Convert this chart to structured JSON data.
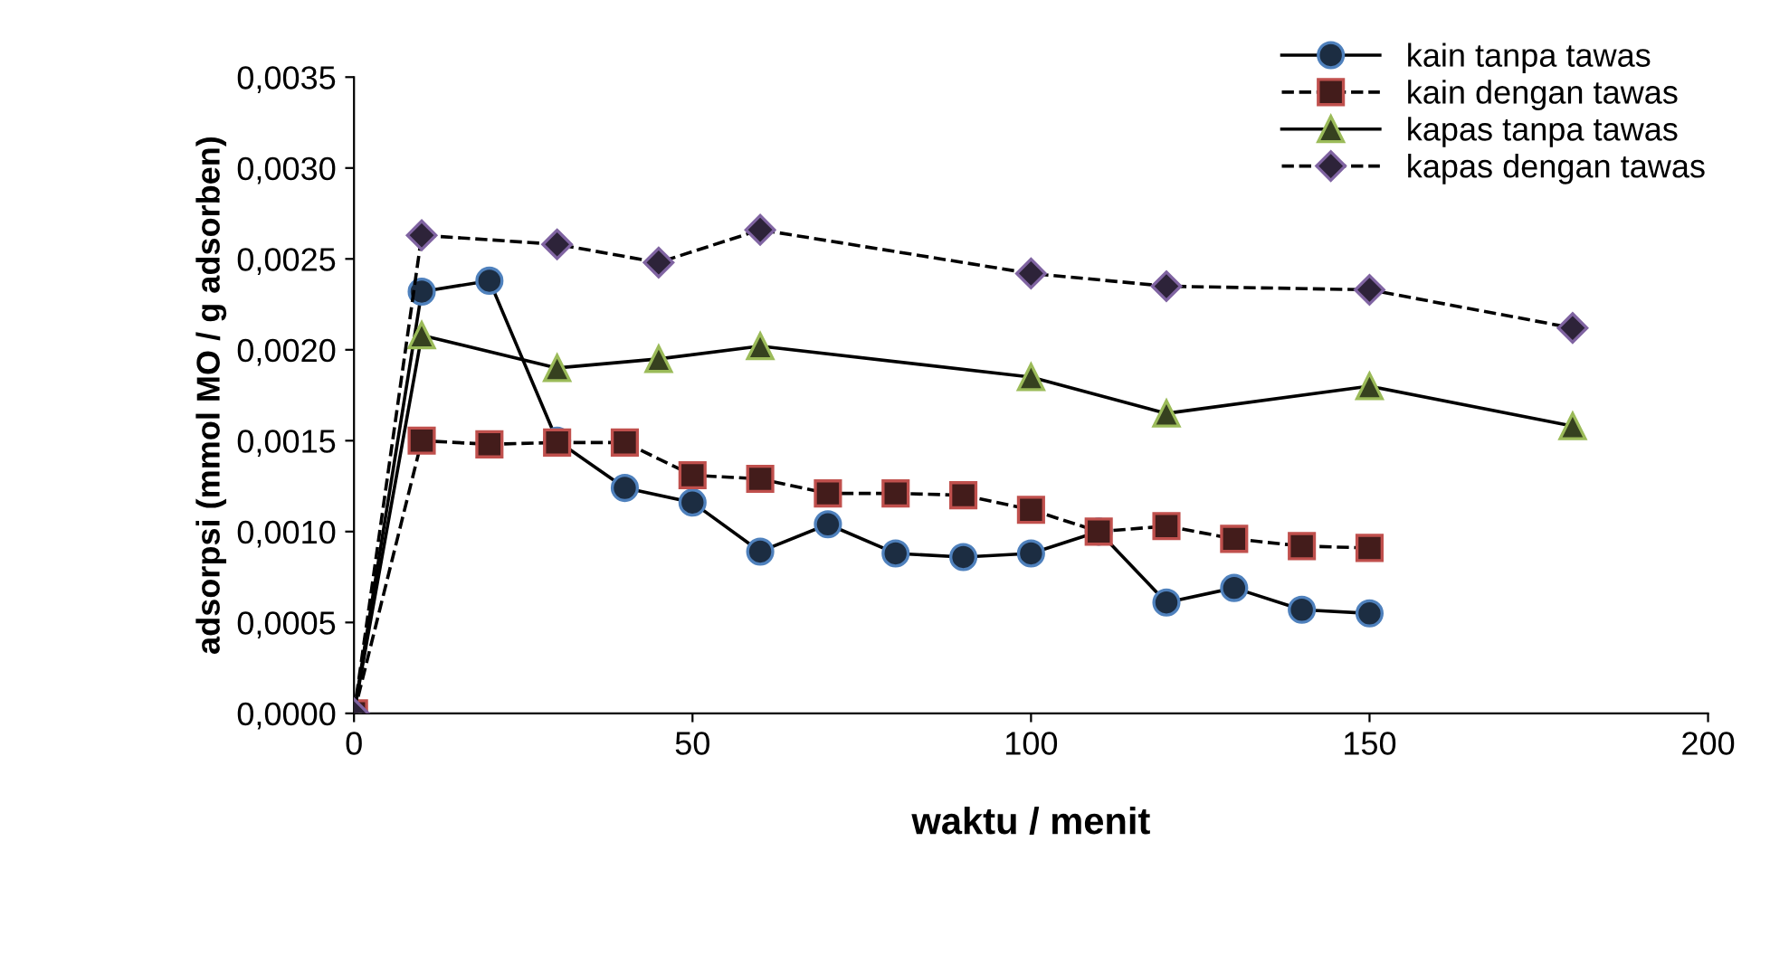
{
  "chart_data": {
    "type": "line",
    "xlabel": "waktu / menit",
    "ylabel": "adsorpsi (mmol MO / g adsorben)",
    "xlim": [
      0,
      200
    ],
    "xticks": [
      0,
      50,
      100,
      150,
      200
    ],
    "ylim": [
      0,
      0.0035
    ],
    "yticks": [
      {
        "value": 0,
        "label": "0,0000"
      },
      {
        "value": 0.0005,
        "label": "0,0005"
      },
      {
        "value": 0.001,
        "label": "0,0010"
      },
      {
        "value": 0.0015,
        "label": "0,0015"
      },
      {
        "value": 0.002,
        "label": "0,0020"
      },
      {
        "value": 0.0025,
        "label": "0,0025"
      },
      {
        "value": 0.003,
        "label": "0,0030"
      },
      {
        "value": 0.0035,
        "label": "0,0035"
      }
    ],
    "grid": false,
    "legend": "top right",
    "series": [
      {
        "name": "kain tanpa tawas",
        "color": "#4f81bd",
        "marker": "circle",
        "line_style": "solid",
        "x": [
          0,
          10,
          20,
          30,
          40,
          50,
          60,
          70,
          80,
          90,
          100,
          110,
          120,
          130,
          140,
          150
        ],
        "values": [
          0,
          0.00232,
          0.00238,
          0.0015,
          0.00124,
          0.00116,
          0.00089,
          0.00104,
          0.00088,
          0.00086,
          0.00088,
          0.001,
          0.00061,
          0.00069,
          0.00057,
          0.00055
        ]
      },
      {
        "name": "kain dengan tawas",
        "color": "#c0504d",
        "marker": "square",
        "line_style": "dashed",
        "x": [
          0,
          10,
          20,
          30,
          40,
          50,
          60,
          70,
          80,
          90,
          100,
          110,
          120,
          130,
          140,
          150
        ],
        "values": [
          0,
          0.0015,
          0.00148,
          0.00149,
          0.00149,
          0.00131,
          0.00129,
          0.00121,
          0.00121,
          0.0012,
          0.00112,
          0.001,
          0.00103,
          0.00096,
          0.00092,
          0.00091
        ]
      },
      {
        "name": "kapas tanpa tawas",
        "color": "#9bbb59",
        "marker": "triangle",
        "line_style": "solid",
        "x": [
          0,
          10,
          30,
          45,
          60,
          100,
          120,
          150,
          180
        ],
        "values": [
          0,
          0.00208,
          0.0019,
          0.00195,
          0.00202,
          0.00185,
          0.00165,
          0.0018,
          0.00158
        ]
      },
      {
        "name": "kapas dengan tawas",
        "color": "#8064a2",
        "marker": "diamond",
        "line_style": "dashed",
        "x": [
          0,
          10,
          30,
          45,
          60,
          100,
          120,
          150,
          180
        ],
        "values": [
          0,
          0.00263,
          0.00258,
          0.00248,
          0.00266,
          0.00242,
          0.00235,
          0.00233,
          0.00212
        ]
      }
    ]
  }
}
